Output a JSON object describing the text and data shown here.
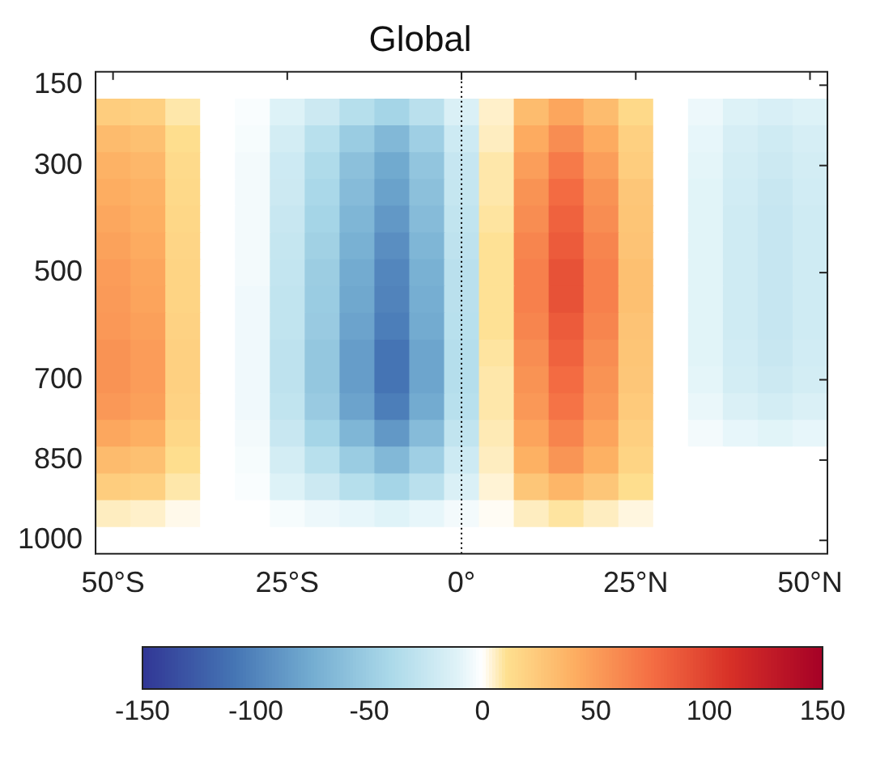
{
  "chart_data": {
    "type": "heatmap",
    "title": "Global",
    "categories": [
      "50°S",
      null,
      null,
      null,
      null,
      "25°S",
      null,
      null,
      null,
      null,
      "0°",
      null,
      null,
      null,
      null,
      "25°N",
      null,
      null,
      null,
      null,
      "50°N"
    ],
    "y_categories": [
      "150",
      null,
      null,
      "300",
      null,
      null,
      null,
      "500",
      null,
      null,
      null,
      "700",
      null,
      null,
      "850",
      null,
      null,
      "1000"
    ],
    "cells": [
      [
        0,
        0,
        0,
        0,
        0,
        0,
        0,
        0,
        0,
        0,
        0,
        0,
        0,
        0,
        0,
        0,
        0,
        0,
        0,
        0,
        0
      ],
      [
        22,
        20,
        8,
        0,
        -2,
        -12,
        -22,
        -34,
        -44,
        -32,
        -14,
        5,
        32,
        45,
        32,
        15,
        0,
        -6,
        -12,
        -15,
        -12
      ],
      [
        33,
        30,
        12,
        0,
        -3,
        -18,
        -33,
        -51,
        -66,
        -48,
        -21,
        6,
        42,
        58,
        42,
        20,
        0,
        -8,
        -16,
        -20,
        -16
      ],
      [
        38,
        35,
        14,
        0,
        -4,
        -21,
        -38,
        -60,
        -77,
        -56,
        -25,
        8,
        49,
        68,
        49,
        22,
        0,
        -9,
        -18,
        -22,
        -18
      ],
      [
        41,
        38,
        15,
        0,
        -4,
        -22,
        -41,
        -64,
        -82,
        -60,
        -26,
        8,
        55,
        76,
        55,
        26,
        0,
        -10,
        -19,
        -24,
        -19
      ],
      [
        44,
        40,
        16,
        0,
        -4,
        -24,
        -44,
        -68,
        -88,
        -64,
        -28,
        9,
        58,
        81,
        58,
        27,
        0,
        -10,
        -20,
        -25,
        -20
      ],
      [
        47,
        42,
        17,
        0,
        -4,
        -26,
        -47,
        -72,
        -94,
        -68,
        -30,
        10,
        62,
        85,
        62,
        28,
        0,
        -10,
        -20,
        -25,
        -20
      ],
      [
        50,
        45,
        18,
        0,
        -4,
        -27,
        -50,
        -76,
        -99,
        -72,
        -32,
        10,
        65,
        90,
        65,
        30,
        0,
        -10,
        -20,
        -25,
        -20
      ],
      [
        51,
        46,
        18,
        0,
        -5,
        -28,
        -51,
        -78,
        -101,
        -74,
        -32,
        10,
        65,
        90,
        65,
        30,
        0,
        -10,
        -20,
        -25,
        -20
      ],
      [
        52,
        48,
        19,
        0,
        -5,
        -28,
        -52,
        -81,
        -104,
        -76,
        -33,
        10,
        62,
        85,
        62,
        28,
        0,
        -10,
        -20,
        -25,
        -20
      ],
      [
        55,
        50,
        20,
        0,
        -5,
        -30,
        -55,
        -85,
        -110,
        -80,
        -35,
        9,
        58,
        81,
        58,
        27,
        0,
        -10,
        -19,
        -24,
        -19
      ],
      [
        55,
        50,
        20,
        0,
        -5,
        -30,
        -55,
        -85,
        -110,
        -80,
        -35,
        8,
        55,
        76,
        55,
        26,
        0,
        -9,
        -18,
        -22,
        -18
      ],
      [
        52,
        48,
        19,
        0,
        -5,
        -28,
        -52,
        -81,
        -104,
        -76,
        -33,
        8,
        52,
        72,
        52,
        24,
        0,
        -7,
        -14,
        -18,
        -14
      ],
      [
        44,
        40,
        16,
        0,
        -4,
        -24,
        -44,
        -68,
        -88,
        -64,
        -28,
        7,
        46,
        63,
        46,
        21,
        0,
        -4,
        -8,
        -10,
        -8
      ],
      [
        33,
        30,
        12,
        0,
        -3,
        -18,
        -33,
        -51,
        -66,
        -48,
        -21,
        6,
        39,
        54,
        39,
        18,
        0,
        0,
        0,
        0,
        0
      ],
      [
        22,
        20,
        8,
        0,
        -2,
        -12,
        -22,
        -34,
        -44,
        -32,
        -14,
        4,
        26,
        36,
        26,
        12,
        0,
        0,
        0,
        0,
        0
      ],
      [
        6,
        5,
        2,
        0,
        0,
        -3,
        -6,
        -8,
        -11,
        -8,
        -4,
        1,
        6,
        9,
        6,
        3,
        0,
        0,
        0,
        0,
        0
      ],
      [
        0,
        0,
        0,
        0,
        0,
        0,
        0,
        0,
        0,
        0,
        0,
        0,
        0,
        0,
        0,
        0,
        0,
        0,
        0,
        0,
        0
      ]
    ],
    "clim": [
      -150,
      150
    ],
    "cticks": [
      -150,
      -100,
      -50,
      0,
      50,
      100,
      150
    ],
    "ref_lines": [
      {
        "axis": "x",
        "value": "0°",
        "color": "#000000",
        "line_style": "dotted"
      }
    ]
  }
}
